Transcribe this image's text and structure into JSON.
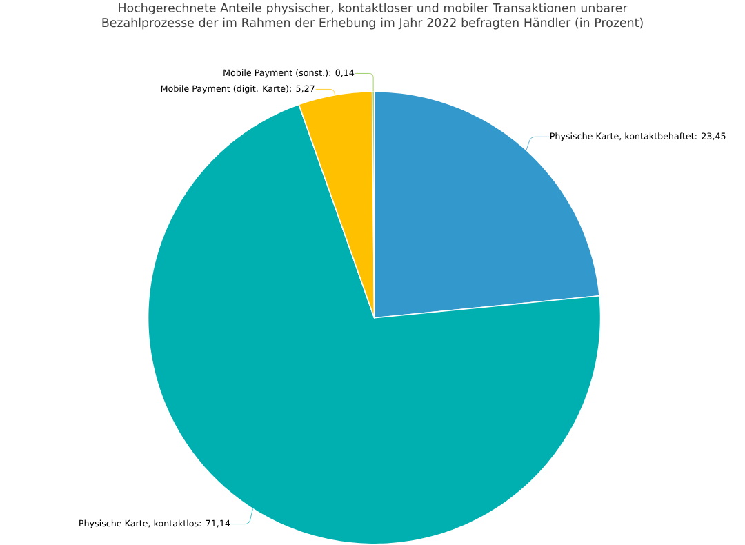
{
  "chart_data": {
    "type": "pie",
    "title": "Hochgerechnete Anteile physischer, kontaktloser und mobiler Transaktionen unbarer Bezahlprozesse der im Rahmen der Erhebung im Jahr 2022 befragten Händler (in Prozent)",
    "categories": [
      "Physische Karte, kontaktbehaftet: 23,45",
      "Physische Karte, kontaktlos: 71,14",
      "Mobile Payment (digit. Karte): 5,27",
      "Mobile Payment (sonst.): 0,14"
    ],
    "values": [
      23.45,
      71.14,
      5.27,
      0.14
    ],
    "colors": [
      "#3399cc",
      "#00b0b0",
      "#ffc000",
      "#8bc34a"
    ]
  }
}
